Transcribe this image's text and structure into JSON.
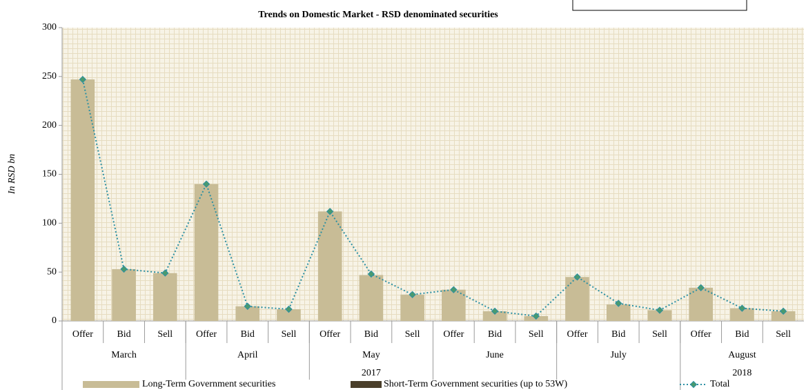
{
  "chart_data": {
    "type": "bar",
    "title": "Trends on Domestic Market - RSD denominated securities",
    "y_label": "In RSD bn",
    "categories": [
      "Offer",
      "Bid",
      "Sell",
      "Offer",
      "Bid",
      "Sell",
      "Offer",
      "Bid",
      "Sell",
      "Offer",
      "Bid",
      "Sell",
      "Offer",
      "Bid",
      "Sell",
      "Offer",
      "Bid",
      "Sell"
    ],
    "years": [
      {
        "label": "2017",
        "months": [
          "March",
          "April",
          "May",
          "June",
          "July"
        ]
      },
      {
        "label": "2018",
        "months": [
          "August"
        ]
      }
    ],
    "series": [
      {
        "name": "Long-Term Government securities",
        "color": "#c8bc96",
        "kind": "bar",
        "values": [
          247,
          53,
          49,
          140,
          15,
          12,
          112,
          47,
          27,
          32,
          10,
          5,
          45,
          17,
          11,
          34,
          13,
          10
        ]
      },
      {
        "name": "Short-Term Government securities (up to 53W)",
        "color": "#4a3f2a",
        "kind": "bar",
        "values": [
          0,
          0,
          0,
          0,
          0,
          0,
          0,
          0,
          0,
          0,
          0,
          0,
          0,
          0,
          0,
          0,
          0,
          0
        ]
      },
      {
        "name": "Total",
        "color": "#2a8fa3",
        "marker_color": "#4a9a6e",
        "kind": "line",
        "values": [
          247,
          53,
          49,
          140,
          15,
          12,
          112,
          48,
          27,
          32,
          10,
          5,
          45,
          18,
          11,
          34,
          13,
          10
        ]
      }
    ],
    "ylim": [
      0,
      300
    ],
    "yticks": [
      0,
      50,
      100,
      150,
      200,
      250,
      300
    ],
    "stacked": true,
    "legend": "bottom"
  }
}
